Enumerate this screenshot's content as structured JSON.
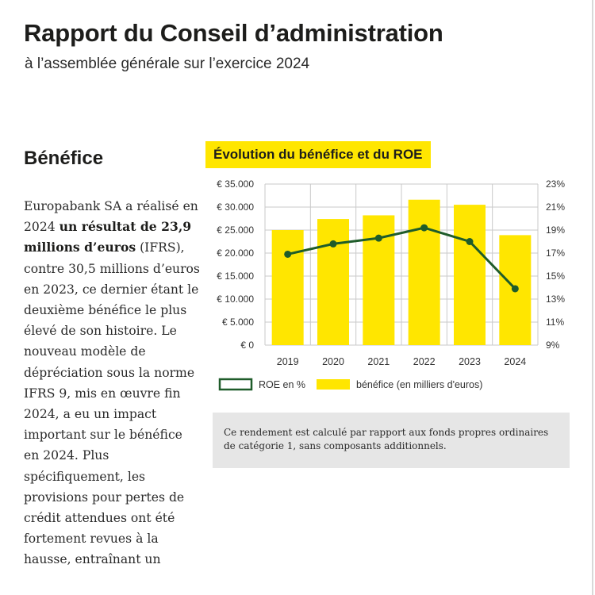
{
  "header": {
    "title": "Rapport du Conseil d’administration",
    "subtitle": "à l’assemblée générale sur l’exercice 2024"
  },
  "section": {
    "heading": "Bénéfice",
    "body_pre": "Europabank SA a réalisé en 2024 ",
    "body_bold": "un résultat de 23,9 millions d’euros",
    "body_post": " (IFRS), contre 30,5 millions d’euros en 2023, ce dernier étant le deuxième bénéfice le plus élevé de son histoire. Le nouveau modèle de dépréciation sous la norme IFRS 9, mis en œuvre fin 2024, a eu un impact important sur le bénéfice en 2024. Plus spécifiquement, les provisions pour pertes de crédit attendues ont été fortement revues à la hausse, entraînant un"
  },
  "note": "Ce rendement est calculé par rapport aux fonds propres ordinaires de catégorie 1, sans composants additionnels.",
  "colors": {
    "accent_yellow": "#ffe600",
    "line_green": "#1f5c2a",
    "grid": "#c9c9c9"
  },
  "chart_data": {
    "type": "bar",
    "title": "Évolution du bénéfice et du ROE",
    "categories": [
      "2019",
      "2020",
      "2021",
      "2022",
      "2023",
      "2024"
    ],
    "series": [
      {
        "name": "bénéfice (en milliers d'euros)",
        "type": "bar",
        "axis": "left",
        "values": [
          25000,
          27400,
          28200,
          31600,
          30500,
          23900
        ]
      },
      {
        "name": "ROE en %",
        "type": "line",
        "axis": "right",
        "values": [
          16.9,
          17.8,
          18.3,
          19.2,
          18.0,
          13.9
        ]
      }
    ],
    "left_axis": {
      "min": 0,
      "max": 35000,
      "ticks": [
        "€ 0",
        "€ 5.000",
        "€ 10.000",
        "€ 15.000",
        "€ 20.000",
        "€ 25.000",
        "€ 30.000",
        "€ 35.000"
      ]
    },
    "right_axis": {
      "min": 9,
      "max": 23,
      "ticks": [
        "9%",
        "11%",
        "13%",
        "15%",
        "17%",
        "19%",
        "21%",
        "23%"
      ]
    },
    "grid": true,
    "legend_position": "bottom"
  }
}
